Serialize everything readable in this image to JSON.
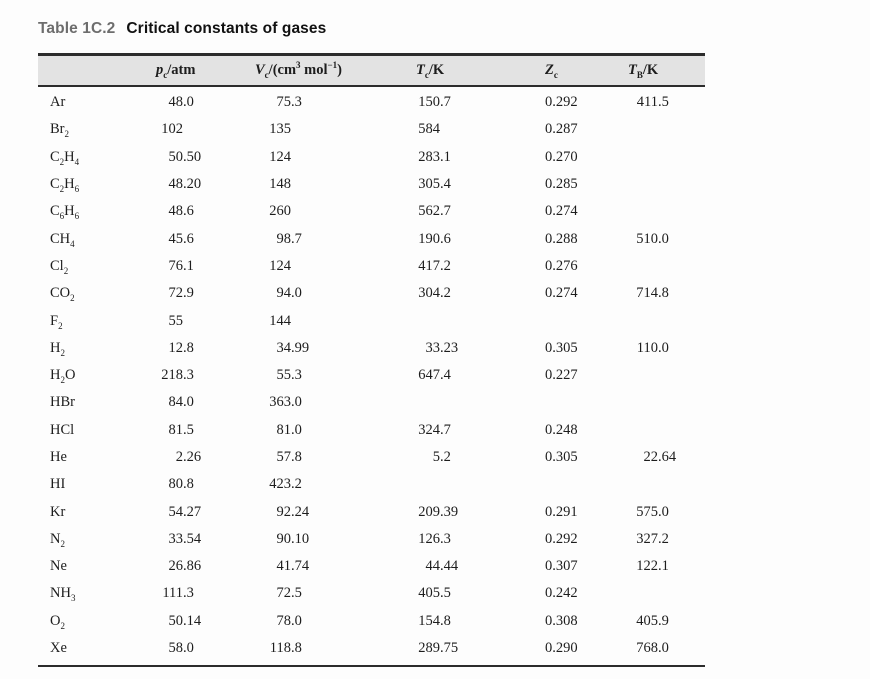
{
  "title": {
    "label": "Table 1C.2",
    "text": "Critical constants of gases"
  },
  "table": {
    "columns": [
      {
        "key": "formula",
        "name": "column-header-substance",
        "parts": []
      },
      {
        "key": "pc",
        "name": "column-header-pc-atm",
        "parts": [
          {
            "t": "p",
            "s": "i"
          },
          {
            "t": "c",
            "s": "sub"
          },
          {
            "t": "/atm",
            "s": ""
          }
        ]
      },
      {
        "key": "vc",
        "name": "column-header-vc-cm3mol",
        "parts": [
          {
            "t": "V",
            "s": "i"
          },
          {
            "t": "c",
            "s": "sub"
          },
          {
            "t": "/(cm",
            "s": ""
          },
          {
            "t": "3",
            "s": "sup"
          },
          {
            "t": " mol",
            "s": ""
          },
          {
            "t": "−1",
            "s": "sup"
          },
          {
            "t": ")",
            "s": ""
          }
        ]
      },
      {
        "key": "tc",
        "name": "column-header-tc-k",
        "parts": [
          {
            "t": "T",
            "s": "i"
          },
          {
            "t": "c",
            "s": "sub"
          },
          {
            "t": "/K",
            "s": ""
          }
        ]
      },
      {
        "key": "zc",
        "name": "column-header-zc",
        "parts": [
          {
            "t": "Z",
            "s": "i"
          },
          {
            "t": "c",
            "s": "sub"
          }
        ]
      },
      {
        "key": "tb",
        "name": "column-header-tb-k",
        "parts": [
          {
            "t": "T",
            "s": "i"
          },
          {
            "t": "B",
            "s": "sub"
          },
          {
            "t": "/K",
            "s": ""
          }
        ]
      }
    ],
    "rows": [
      {
        "formula": "Ar",
        "pc": "48.0",
        "vc": "75.3",
        "tc": "150.7",
        "zc": "0.292",
        "tb": "411.5"
      },
      {
        "formula": "Br_2",
        "pc": "102",
        "vc": "135",
        "tc": "584",
        "zc": "0.287",
        "tb": ""
      },
      {
        "formula": "C_2H_4",
        "pc": "50.50",
        "vc": "124",
        "tc": "283.1",
        "zc": "0.270",
        "tb": ""
      },
      {
        "formula": "C_2H_6",
        "pc": "48.20",
        "vc": "148",
        "tc": "305.4",
        "zc": "0.285",
        "tb": ""
      },
      {
        "formula": "C_6H_6",
        "pc": "48.6",
        "vc": "260",
        "tc": "562.7",
        "zc": "0.274",
        "tb": ""
      },
      {
        "formula": "CH_4",
        "pc": "45.6",
        "vc": "98.7",
        "tc": "190.6",
        "zc": "0.288",
        "tb": "510.0"
      },
      {
        "formula": "Cl_2",
        "pc": "76.1",
        "vc": "124",
        "tc": "417.2",
        "zc": "0.276",
        "tb": ""
      },
      {
        "formula": "CO_2",
        "pc": "72.9",
        "vc": "94.0",
        "tc": "304.2",
        "zc": "0.274",
        "tb": "714.8"
      },
      {
        "formula": "F_2",
        "pc": "55",
        "vc": "144",
        "tc": "",
        "zc": "",
        "tb": ""
      },
      {
        "formula": "H_2",
        "pc": "12.8",
        "vc": "34.99",
        "tc": "33.23",
        "zc": "0.305",
        "tb": "110.0"
      },
      {
        "formula": "H_2O",
        "pc": "218.3",
        "vc": "55.3",
        "tc": "647.4",
        "zc": "0.227",
        "tb": ""
      },
      {
        "formula": "HBr",
        "pc": "84.0",
        "vc": "363.0",
        "tc": "",
        "zc": "",
        "tb": ""
      },
      {
        "formula": "HCl",
        "pc": "81.5",
        "vc": "81.0",
        "tc": "324.7",
        "zc": "0.248",
        "tb": ""
      },
      {
        "formula": "He",
        "pc": "2.26",
        "vc": "57.8",
        "tc": "5.2",
        "zc": "0.305",
        "tb": "22.64"
      },
      {
        "formula": "HI",
        "pc": "80.8",
        "vc": "423.2",
        "tc": "",
        "zc": "",
        "tb": ""
      },
      {
        "formula": "Kr",
        "pc": "54.27",
        "vc": "92.24",
        "tc": "209.39",
        "zc": "0.291",
        "tb": "575.0"
      },
      {
        "formula": "N_2",
        "pc": "33.54",
        "vc": "90.10",
        "tc": "126.3",
        "zc": "0.292",
        "tb": "327.2"
      },
      {
        "formula": "Ne",
        "pc": "26.86",
        "vc": "41.74",
        "tc": "44.44",
        "zc": "0.307",
        "tb": "122.1"
      },
      {
        "formula": "NH_3",
        "pc": "111.3",
        "vc": "72.5",
        "tc": "405.5",
        "zc": "0.242",
        "tb": ""
      },
      {
        "formula": "O_2",
        "pc": "50.14",
        "vc": "78.0",
        "tc": "154.8",
        "zc": "0.308",
        "tb": "405.9"
      },
      {
        "formula": "Xe",
        "pc": "58.0",
        "vc": "118.8",
        "tc": "289.75",
        "zc": "0.290",
        "tb": "768.0"
      }
    ]
  },
  "colors": {
    "title_label": "#6d6d6d",
    "title_text": "#111111",
    "header_background": "#e3e3e3",
    "rule": "#2c2c2c",
    "body_text": "#1d1d1d",
    "page_background": "#fdfdfd"
  }
}
